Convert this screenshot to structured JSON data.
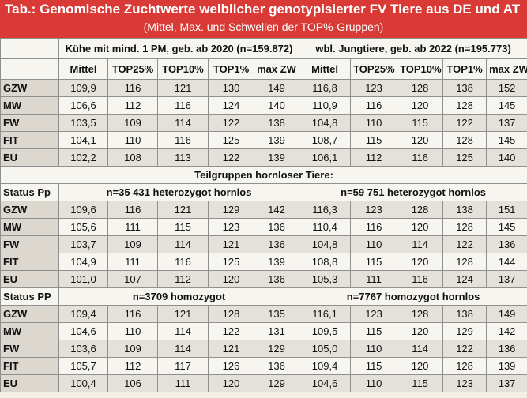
{
  "header": {
    "title": "Tab.: Genomische Zuchtwerte weiblicher genotypisierter FV Tiere aus DE und AT",
    "subtitle": "(Mittel, Max. und Schwellen der TOP%-Gruppen)"
  },
  "groups": {
    "cows": "Kühe mit mind. 1 PM, geb. ab 2020 (n=159.872)",
    "heifers": "wbl. Jungtiere, geb. ab 2022 (n=195.773)"
  },
  "columns": [
    "Mittel",
    "TOP25%",
    "TOP10%",
    "TOP1%",
    "max ZW"
  ],
  "columns_right": [
    "Mittel",
    "TOP25%",
    "TOP10%",
    "TOP1%",
    "max ZW"
  ],
  "section1": {
    "rows": [
      {
        "label": "GZW",
        "values": [
          "109,9",
          "116",
          "121",
          "130",
          "149"
        ],
        "values_right": [
          "116,8",
          "123",
          "128",
          "138",
          "152"
        ]
      },
      {
        "label": "MW",
        "values": [
          "106,6",
          "112",
          "116",
          "124",
          "140"
        ],
        "values_right": [
          "110,9",
          "116",
          "120",
          "128",
          "145"
        ]
      },
      {
        "label": "FW",
        "values": [
          "103,5",
          "109",
          "114",
          "122",
          "138"
        ],
        "values_right": [
          "104,8",
          "110",
          "115",
          "122",
          "137"
        ]
      },
      {
        "label": "FIT",
        "values": [
          "104,1",
          "110",
          "116",
          "125",
          "139"
        ],
        "values_right": [
          "108,7",
          "115",
          "120",
          "128",
          "145"
        ]
      },
      {
        "label": "EU",
        "values": [
          "102,2",
          "108",
          "113",
          "122",
          "139"
        ],
        "values_right": [
          "106,1",
          "112",
          "116",
          "125",
          "140"
        ]
      }
    ]
  },
  "subgroup_title": "Teilgruppen hornloser Tiere:",
  "section2": {
    "status": "Status Pp",
    "left_desc": "n=35 431 heterozygot hornlos",
    "right_desc": "n=59 751 heterozygot hornlos",
    "rows": [
      {
        "label": "GZW",
        "values": [
          "109,6",
          "116",
          "121",
          "129",
          "142"
        ],
        "values_right": [
          "116,3",
          "123",
          "128",
          "138",
          "151"
        ]
      },
      {
        "label": "MW",
        "values": [
          "105,6",
          "111",
          "115",
          "123",
          "136"
        ],
        "values_right": [
          "110,4",
          "116",
          "120",
          "128",
          "145"
        ]
      },
      {
        "label": "FW",
        "values": [
          "103,7",
          "109",
          "114",
          "121",
          "136"
        ],
        "values_right": [
          "104,8",
          "110",
          "114",
          "122",
          "136"
        ]
      },
      {
        "label": "FIT",
        "values": [
          "104,9",
          "111",
          "116",
          "125",
          "139"
        ],
        "values_right": [
          "108,8",
          "115",
          "120",
          "128",
          "144"
        ]
      },
      {
        "label": "EU",
        "values": [
          "101,0",
          "107",
          "112",
          "120",
          "136"
        ],
        "values_right": [
          "105,3",
          "111",
          "116",
          "124",
          "137"
        ]
      }
    ]
  },
  "section3": {
    "status": "Status PP",
    "left_desc": "n=3709 homozygot",
    "right_desc": "n=7767 homozygot hornlos",
    "rows": [
      {
        "label": "GZW",
        "values": [
          "109,4",
          "116",
          "121",
          "128",
          "135"
        ],
        "values_right": [
          "116,1",
          "123",
          "128",
          "138",
          "149"
        ]
      },
      {
        "label": "MW",
        "values": [
          "104,6",
          "110",
          "114",
          "122",
          "131"
        ],
        "values_right": [
          "109,5",
          "115",
          "120",
          "129",
          "142"
        ]
      },
      {
        "label": "FW",
        "values": [
          "103,6",
          "109",
          "114",
          "121",
          "129"
        ],
        "values_right": [
          "105,0",
          "110",
          "114",
          "122",
          "136"
        ]
      },
      {
        "label": "FIT",
        "values": [
          "105,7",
          "112",
          "117",
          "126",
          "136"
        ],
        "values_right": [
          "109,4",
          "115",
          "120",
          "128",
          "139"
        ]
      },
      {
        "label": "EU",
        "values": [
          "100,4",
          "106",
          "111",
          "120",
          "129"
        ],
        "values_right": [
          "104,6",
          "110",
          "115",
          "123",
          "137"
        ]
      }
    ]
  }
}
